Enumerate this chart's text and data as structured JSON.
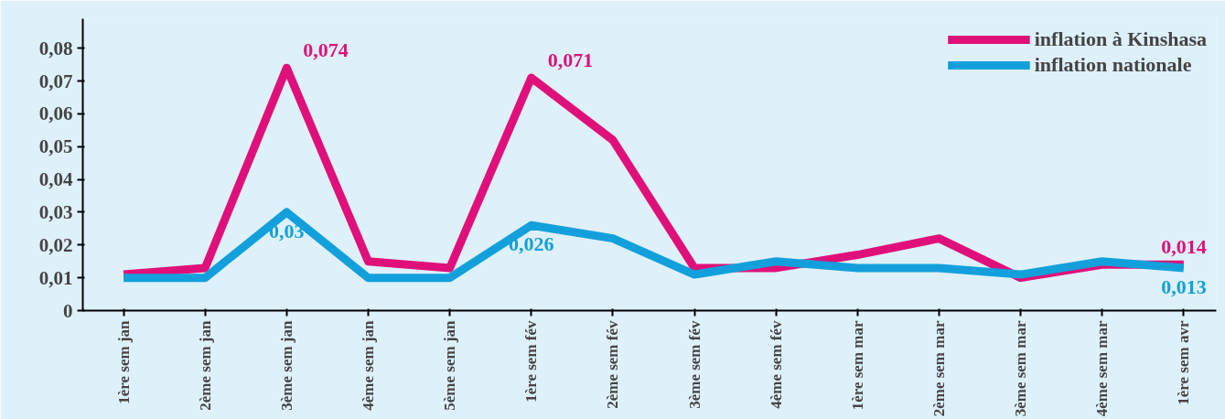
{
  "chart_data": {
    "type": "line",
    "categories": [
      "1ère sem jan",
      "2ème sem jan",
      "3ème sem jan",
      "4ème sem jan",
      "5ème sem jan",
      "1ère sem fév",
      "2ème sem fév",
      "3ème sem fév",
      "4ème sem fév",
      "1ère sem mar",
      "2ème sem mar",
      "3ème sem mar",
      "4ème sem mar",
      "1ère sem avr"
    ],
    "series": [
      {
        "name": "inflation à Kinshasa",
        "color": "#e0107a",
        "values": [
          0.011,
          0.013,
          0.074,
          0.015,
          0.013,
          0.071,
          0.052,
          0.013,
          0.013,
          0.017,
          0.022,
          0.01,
          0.014,
          0.014
        ],
        "value_labels": [
          null,
          null,
          "0,074",
          null,
          null,
          "0,071",
          null,
          null,
          null,
          null,
          null,
          null,
          null,
          "0,014"
        ]
      },
      {
        "name": "inflation nationale",
        "color": "#12a0dc",
        "values": [
          0.01,
          0.01,
          0.03,
          0.01,
          0.01,
          0.026,
          0.022,
          0.011,
          0.015,
          0.013,
          0.013,
          0.011,
          0.015,
          0.013
        ],
        "value_labels": [
          null,
          null,
          "0,03",
          null,
          null,
          "0,026",
          null,
          null,
          null,
          null,
          null,
          null,
          null,
          "0,013"
        ]
      }
    ],
    "ylim": [
      0,
      0.089
    ],
    "yticks": [
      {
        "value": 0,
        "label": "0"
      },
      {
        "value": 0.01,
        "label": "0,01"
      },
      {
        "value": 0.02,
        "label": "0,02"
      },
      {
        "value": 0.03,
        "label": "0,03"
      },
      {
        "value": 0.04,
        "label": "0,04"
      },
      {
        "value": 0.05,
        "label": "0,05"
      },
      {
        "value": 0.06,
        "label": "0,06"
      },
      {
        "value": 0.07,
        "label": "0,07"
      },
      {
        "value": 0.08,
        "label": "0,08"
      }
    ],
    "grid": false,
    "legend": "top right",
    "marker": "none",
    "line_style": "solid"
  }
}
